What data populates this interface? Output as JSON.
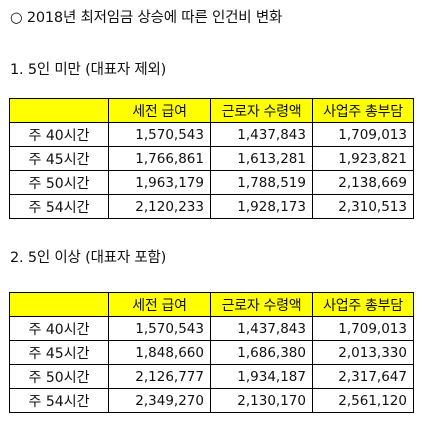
{
  "title": "○ 2018년 최저임금 상승에 따른 인건비 변화",
  "sections": [
    {
      "heading": "1. 5인 미만 (대표자 제외)",
      "columns": [
        "",
        "세전 급여",
        "근로자 수령액",
        "사업주 총부담"
      ],
      "rows": [
        {
          "label": "주 40시간",
          "values": [
            "1,570,543",
            "1,437,843",
            "1,709,013"
          ]
        },
        {
          "label": "주 45시간",
          "values": [
            "1,766,861",
            "1,613,281",
            "1,923,821"
          ]
        },
        {
          "label": "주 50시간",
          "values": [
            "1,963,179",
            "1,788,519",
            "2,138,669"
          ]
        },
        {
          "label": "주 54시간",
          "values": [
            "2,120,233",
            "1,928,173",
            "2,310,513"
          ]
        }
      ]
    },
    {
      "heading": "2. 5인 이상 (대표자 포함)",
      "columns": [
        "",
        "세전 급여",
        "근로자 수령액",
        "사업주 총부담"
      ],
      "rows": [
        {
          "label": "주 40시간",
          "values": [
            "1,570,543",
            "1,437,843",
            "1,709,013"
          ]
        },
        {
          "label": "주 45시간",
          "values": [
            "1,848,660",
            "1,686,380",
            "2,013,330"
          ]
        },
        {
          "label": "주 50시간",
          "values": [
            "2,126,777",
            "1,934,187",
            "2,317,647"
          ]
        },
        {
          "label": "주 54시간",
          "values": [
            "2,349,270",
            "2,130,170",
            "2,561,120"
          ]
        }
      ]
    }
  ],
  "colors": {
    "header_fill": "#ffff00",
    "border": "#000000",
    "text": "#111111"
  }
}
